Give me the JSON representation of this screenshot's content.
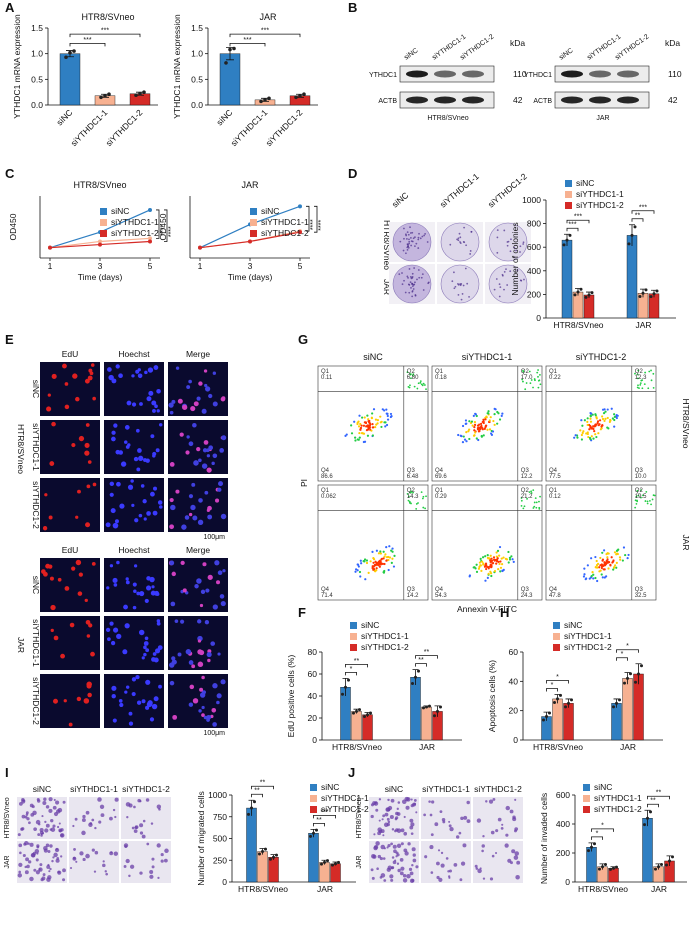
{
  "colors": {
    "siNC": "#2f7fc2",
    "siYTHDC1-1": "#f7b191",
    "siYTHDC1-2": "#d52b27",
    "panel_bg": "#0a0a2e"
  },
  "panel_labels": [
    "A",
    "B",
    "C",
    "D",
    "E",
    "F",
    "G",
    "H",
    "I",
    "J"
  ],
  "legend": [
    "siNC",
    "siYTHDC1-1",
    "siYTHDC1-2"
  ],
  "A": {
    "charts": [
      {
        "title": "HTR8/SVneo",
        "ylabel": "YTHDC1 mRNA expression",
        "categories": [
          "siNC",
          "siYTHDC1-1",
          "siYTHDC1-2"
        ],
        "values": [
          1.0,
          0.18,
          0.22
        ],
        "errors": [
          0.06,
          0.03,
          0.03
        ],
        "ylim": [
          0,
          1.5
        ],
        "yticks": [
          "0.0",
          "0.5",
          "1.0",
          "1.5"
        ],
        "sig": [
          "***",
          "***"
        ],
        "points": [
          [
            0.93,
            1.02,
            1.05
          ],
          [
            0.15,
            0.18,
            0.21
          ],
          [
            0.19,
            0.22,
            0.25
          ]
        ]
      },
      {
        "title": "JAR",
        "ylabel": "YTHDC1 mRNA expression",
        "categories": [
          "siNC",
          "siYTHDC1-1",
          "siYTHDC1-2"
        ],
        "values": [
          1.0,
          0.1,
          0.18
        ],
        "errors": [
          0.12,
          0.03,
          0.03
        ],
        "ylim": [
          0,
          1.5
        ],
        "yticks": [
          "0.0",
          "0.5",
          "1.0",
          "1.5"
        ],
        "sig": [
          "***",
          "***"
        ],
        "points": [
          [
            0.82,
            1.08,
            1.1
          ],
          [
            0.07,
            0.1,
            0.13
          ],
          [
            0.15,
            0.18,
            0.21
          ]
        ]
      }
    ]
  },
  "B": {
    "kda": "kDa",
    "blots": [
      {
        "cell": "HTR8/SVneo",
        "lanes": [
          "siNC",
          "siYTHDC1-1",
          "siYTHDC1-2"
        ],
        "rows": [
          {
            "name": "YTHDC1",
            "kda": "110"
          },
          {
            "name": "ACTB",
            "kda": "42"
          }
        ]
      },
      {
        "cell": "JAR",
        "lanes": [
          "siNC",
          "siYTHDC1-1",
          "siYTHDC1-2"
        ],
        "rows": [
          {
            "name": "YTHDC1",
            "kda": "110"
          },
          {
            "name": "ACTB",
            "kda": "42"
          }
        ]
      }
    ]
  },
  "C": {
    "charts": [
      {
        "title": "HTR8/SVneo",
        "ylabel": "OD450",
        "xlabel": "Time (days)",
        "x": [
          1,
          3,
          5
        ],
        "series": [
          {
            "name": "siNC",
            "values": [
              0.2,
              0.5,
              0.93
            ]
          },
          {
            "name": "siYTHDC1-1",
            "values": [
              0.2,
              0.32,
              0.38
            ]
          },
          {
            "name": "siYTHDC1-2",
            "values": [
              0.2,
              0.26,
              0.32
            ]
          }
        ],
        "ylim": [
          0,
          1.2
        ],
        "sig": [
          "****",
          "****"
        ]
      },
      {
        "title": "JAR",
        "ylabel": "OD450",
        "xlabel": "Time (days)",
        "x": [
          1,
          3,
          5
        ],
        "series": [
          {
            "name": "siNC",
            "values": [
              0.2,
              0.65,
              1.0
            ]
          },
          {
            "name": "siYTHDC1-1",
            "values": [
              0.2,
              0.32,
              0.52
            ]
          },
          {
            "name": "siYTHDC1-2",
            "values": [
              0.2,
              0.32,
              0.5
            ]
          }
        ],
        "ylim": [
          0,
          1.2
        ],
        "sig": [
          "****",
          "****"
        ]
      }
    ]
  },
  "D": {
    "rows": [
      "HTR8/SVneo",
      "JAR"
    ],
    "cols": [
      "siNC",
      "siYTHDC1-1",
      "siYTHDC1-2"
    ],
    "chart": {
      "ylabel": "Number of colonies",
      "groups": [
        "HTR8/SVneo",
        "JAR"
      ],
      "values": [
        [
          660,
          220,
          195
        ],
        [
          700,
          210,
          205
        ]
      ],
      "errors": [
        [
          50,
          30,
          25
        ],
        [
          90,
          35,
          30
        ]
      ],
      "ylim": [
        0,
        1000
      ],
      "yticks": [
        "0",
        "200",
        "400",
        "600",
        "800",
        "1000"
      ],
      "sig": [
        "***",
        "***",
        "**",
        "***"
      ]
    }
  },
  "E": {
    "cols": [
      "EdU",
      "Hoechst",
      "Merge"
    ],
    "rows_top": [
      "siNC",
      "siYTHDC1-1",
      "siYTHDC1-2"
    ],
    "rows_bottom": [
      "siNC",
      "siYTHDC1-1",
      "siYTHDC1-2"
    ],
    "group_top": "HTR8/SVneo",
    "group_bottom": "JAR",
    "scale": "100μm"
  },
  "G": {
    "cols": [
      "siNC",
      "siYTHDC1-1",
      "siYTHDC1-2"
    ],
    "rows": [
      "HTR8/SVneo",
      "JAR"
    ],
    "ylabel": "PI",
    "xlabel": "Annexin V-FITC",
    "quads": [
      [
        {
          "q1": "0.11",
          "q2": "6.80",
          "q3": "6.48",
          "q4": "86.6"
        },
        {
          "q1": "0.18",
          "q2": "17.0",
          "q3": "12.2",
          "q4": "69.6"
        },
        {
          "q1": "0.22",
          "q2": "12.3",
          "q3": "10.0",
          "q4": "77.5"
        }
      ],
      [
        {
          "q1": "0.062",
          "q2": "14.3",
          "q3": "14.2",
          "q4": "71.4"
        },
        {
          "q1": "0.29",
          "q2": "21.2",
          "q3": "24.3",
          "q4": "54.3"
        },
        {
          "q1": "0.12",
          "q2": "19.5",
          "q3": "32.5",
          "q4": "47.8"
        }
      ]
    ]
  },
  "F": {
    "ylabel": "EdU positive cells (%)",
    "groups": [
      "HTR8/SVneo",
      "JAR"
    ],
    "values": [
      [
        48,
        26,
        23
      ],
      [
        57,
        30,
        26
      ]
    ],
    "errors": [
      [
        8,
        2,
        2
      ],
      [
        7,
        1,
        5
      ]
    ],
    "ylim": [
      0,
      80
    ],
    "yticks": [
      "0",
      "20",
      "40",
      "60",
      "80"
    ],
    "sig": [
      "*",
      "**",
      "**",
      "**"
    ]
  },
  "H": {
    "ylabel": "Apoptosis cells (%)",
    "groups": [
      "HTR8/SVneo",
      "JAR"
    ],
    "values": [
      [
        16,
        28,
        25
      ],
      [
        25,
        42,
        45
      ]
    ],
    "errors": [
      [
        3,
        3,
        3
      ],
      [
        3,
        4,
        7
      ]
    ],
    "ylim": [
      0,
      60
    ],
    "yticks": [
      "0",
      "20",
      "40",
      "60"
    ],
    "sig": [
      "*",
      "*",
      "*",
      "*"
    ]
  },
  "I": {
    "rows": [
      "HTR8/SVneo",
      "JAR"
    ],
    "cols": [
      "siNC",
      "siYTHDC1-1",
      "siYTHDC1-2"
    ],
    "chart": {
      "ylabel": "Number of migrated cells",
      "groups": [
        "HTR8/SVneo",
        "JAR"
      ],
      "values": [
        [
          850,
          350,
          285
        ],
        [
          560,
          225,
          210
        ]
      ],
      "errors": [
        [
          90,
          35,
          30
        ],
        [
          45,
          25,
          20
        ]
      ],
      "ylim": [
        0,
        1000
      ],
      "yticks": [
        "0",
        "250",
        "500",
        "750",
        "1000"
      ],
      "sig": [
        "**",
        "**",
        "**",
        "***"
      ]
    }
  },
  "J": {
    "rows": [
      "HTR8/SVneo",
      "JAR"
    ],
    "cols": [
      "siNC",
      "siYTHDC1-1",
      "siYTHDC1-2"
    ],
    "chart": {
      "ylabel": "Number of invaded cells",
      "groups": [
        "HTR8/SVneo",
        "JAR"
      ],
      "values": [
        [
          240,
          105,
          95
        ],
        [
          440,
          105,
          145
        ]
      ],
      "errors": [
        [
          30,
          20,
          10
        ],
        [
          55,
          20,
          35
        ]
      ],
      "ylim": [
        0,
        600
      ],
      "yticks": [
        "0",
        "200",
        "400",
        "600"
      ],
      "sig": [
        "*",
        "*",
        "**",
        "**"
      ]
    }
  }
}
